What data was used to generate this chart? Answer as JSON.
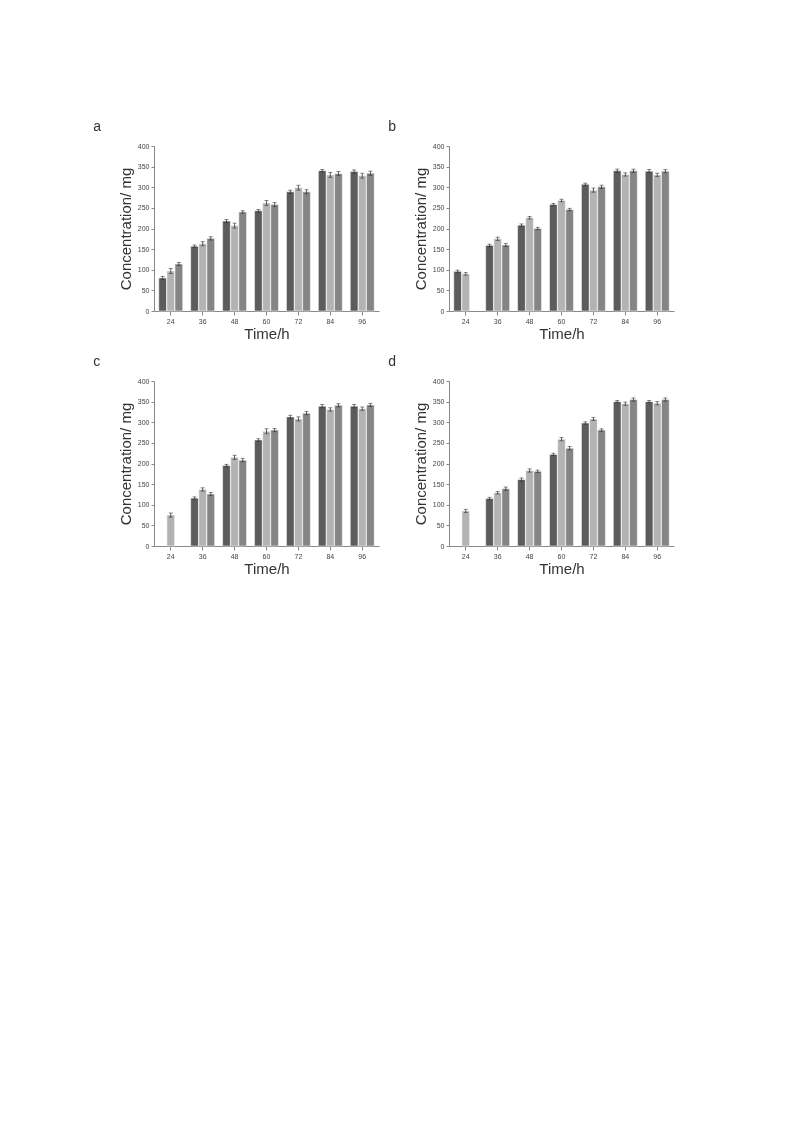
{
  "chart_data": [
    {
      "type": "bar",
      "title": "a",
      "xlabel": "Time/h",
      "ylabel": "Concentration/ mg",
      "categories": [
        "24",
        "36",
        "48",
        "60",
        "72",
        "84",
        "96"
      ],
      "ylim": [
        0,
        400
      ],
      "yticks": [
        0,
        50,
        100,
        150,
        200,
        250,
        300,
        350,
        400
      ],
      "grid": false,
      "legend": false,
      "series": [
        {
          "color": "#5c5c5c",
          "values": [
            80,
            157,
            218,
            243,
            289,
            340,
            338
          ],
          "errors": [
            4,
            3,
            4,
            3,
            4,
            3,
            4
          ]
        },
        {
          "color": "#b3b3b3",
          "values": [
            97,
            163,
            207,
            262,
            299,
            330,
            328
          ],
          "errors": [
            6,
            5,
            6,
            6,
            6,
            6,
            6
          ]
        },
        {
          "color": "#858585",
          "values": [
            114,
            176,
            240,
            258,
            289,
            333,
            334
          ],
          "errors": [
            4,
            4,
            3,
            5,
            5,
            5,
            5
          ]
        }
      ]
    },
    {
      "type": "bar",
      "title": "b",
      "xlabel": "Time/h",
      "ylabel": "Concentration/ mg",
      "categories": [
        "24",
        "36",
        "48",
        "60",
        "72",
        "84",
        "96"
      ],
      "ylim": [
        0,
        400
      ],
      "yticks": [
        0,
        50,
        100,
        150,
        200,
        250,
        300,
        350,
        400
      ],
      "grid": false,
      "legend": false,
      "series": [
        {
          "color": "#5c5c5c",
          "values": [
            96,
            159,
            208,
            258,
            307,
            340,
            339
          ],
          "errors": [
            3,
            3,
            3,
            3,
            3,
            4,
            4
          ]
        },
        {
          "color": "#b3b3b3",
          "values": [
            90,
            175,
            226,
            268,
            293,
            331,
            330
          ],
          "errors": [
            3,
            4,
            3,
            3,
            5,
            4,
            4
          ]
        },
        {
          "color": "#858585",
          "values": [
            null,
            160,
            200,
            246,
            301,
            340,
            339
          ],
          "errors": [
            null,
            4,
            3,
            3,
            4,
            4,
            4
          ]
        }
      ]
    },
    {
      "type": "bar",
      "title": "c",
      "xlabel": "Time/h",
      "ylabel": "Concentration/ mg",
      "categories": [
        "24",
        "36",
        "48",
        "60",
        "72",
        "84",
        "96"
      ],
      "ylim": [
        0,
        400
      ],
      "yticks": [
        0,
        50,
        100,
        150,
        200,
        250,
        300,
        350,
        400
      ],
      "grid": false,
      "legend": false,
      "series": [
        {
          "color": "#5c5c5c",
          "values": [
            null,
            116,
            195,
            257,
            313,
            339,
            339
          ],
          "errors": [
            null,
            3,
            3,
            3,
            4,
            4,
            4
          ]
        },
        {
          "color": "#b3b3b3",
          "values": [
            75,
            137,
            215,
            278,
            308,
            331,
            333
          ],
          "errors": [
            5,
            4,
            5,
            6,
            5,
            4,
            4
          ]
        },
        {
          "color": "#858585",
          "values": [
            null,
            126,
            208,
            281,
            322,
            341,
            342
          ],
          "errors": [
            null,
            4,
            4,
            4,
            4,
            4,
            4
          ]
        }
      ]
    },
    {
      "type": "bar",
      "title": "d",
      "xlabel": "Time/h",
      "ylabel": "Concentration/ mg",
      "categories": [
        "24",
        "36",
        "48",
        "60",
        "72",
        "84",
        "96"
      ],
      "ylim": [
        0,
        400
      ],
      "yticks": [
        0,
        50,
        100,
        150,
        200,
        250,
        300,
        350,
        400
      ],
      "grid": false,
      "legend": false,
      "series": [
        {
          "color": "#5c5c5c",
          "values": [
            null,
            115,
            161,
            222,
            298,
            350,
            350
          ],
          "errors": [
            null,
            3,
            4,
            3,
            3,
            3,
            3
          ]
        },
        {
          "color": "#b3b3b3",
          "values": [
            85,
            129,
            183,
            259,
            308,
            345,
            346
          ],
          "errors": [
            4,
            3,
            4,
            4,
            4,
            4,
            4
          ]
        },
        {
          "color": "#858585",
          "values": [
            null,
            139,
            181,
            237,
            281,
            355,
            355
          ],
          "errors": [
            null,
            4,
            3,
            4,
            3,
            4,
            4
          ]
        }
      ]
    }
  ]
}
